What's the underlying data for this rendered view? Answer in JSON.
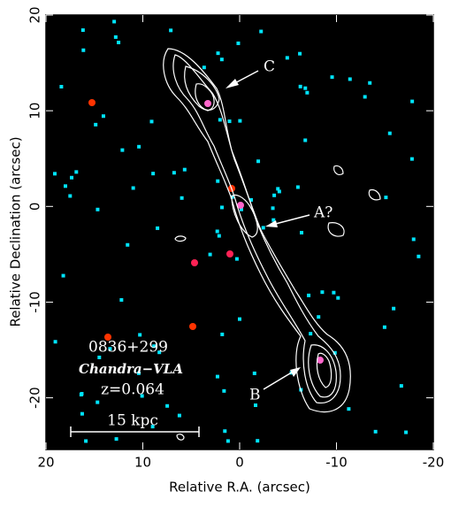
{
  "chart_data": {
    "type": "image",
    "xlabel": "Relative R.A. (arcsec)",
    "ylabel": "Relative Declination (arcsec)",
    "xlim": [
      20,
      -20
    ],
    "ylim": [
      -25.4,
      20
    ],
    "xticks": [
      20,
      10,
      0,
      -10,
      -20
    ],
    "yticks": [
      20,
      10,
      0,
      -10,
      -20
    ],
    "annotations": [
      "C",
      "A?",
      "B",
      "0836+299",
      "Chandra−VLA",
      "z=0.064",
      "15 kpc"
    ],
    "background": "#000000",
    "photon_color": "#00e5ff",
    "contour_color": "#ffffff"
  }
}
